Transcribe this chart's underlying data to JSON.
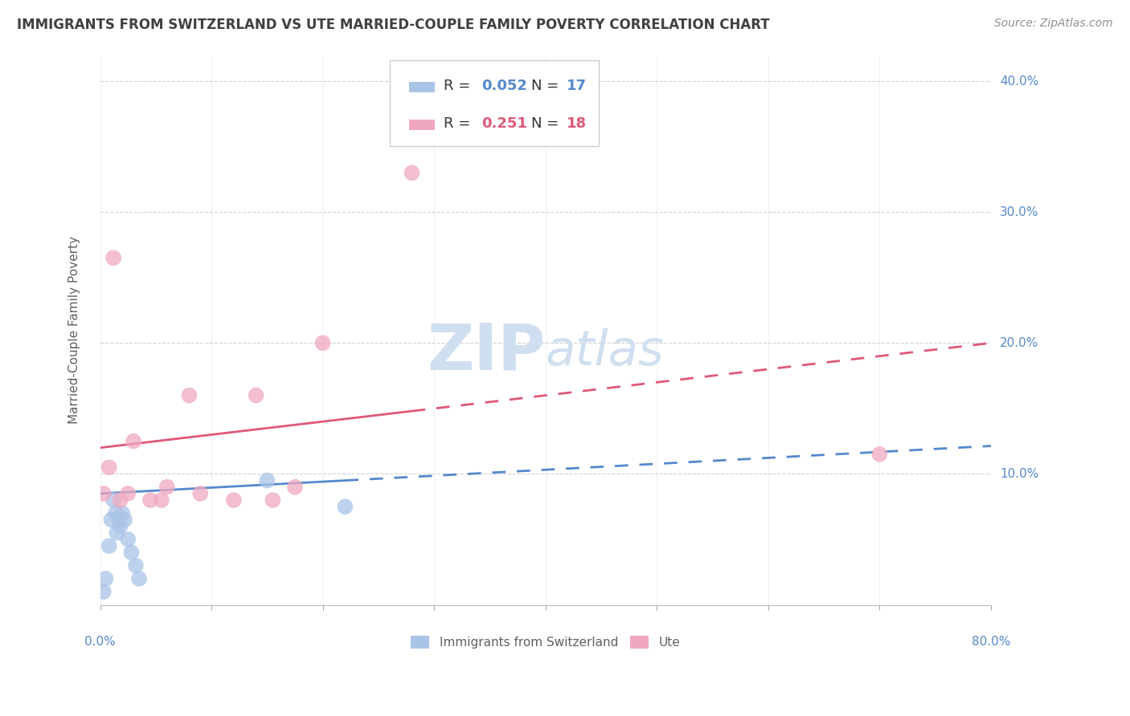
{
  "title": "IMMIGRANTS FROM SWITZERLAND VS UTE MARRIED-COUPLE FAMILY POVERTY CORRELATION CHART",
  "source": "Source: ZipAtlas.com",
  "ylabel": "Married-Couple Family Poverty",
  "legend_labels": [
    "Immigrants from Switzerland",
    "Ute"
  ],
  "blue_color": "#aac4e8",
  "pink_color": "#f0a8c0",
  "blue_line_color": "#5588cc",
  "pink_line_color": "#e05878",
  "blue_scatter_x": [
    0.3,
    0.5,
    0.8,
    1.0,
    1.2,
    1.4,
    1.5,
    1.7,
    1.8,
    2.0,
    2.2,
    2.5,
    2.8,
    3.2,
    3.5,
    15.0,
    22.0
  ],
  "blue_scatter_y": [
    1.0,
    2.0,
    4.5,
    6.5,
    8.0,
    7.0,
    5.5,
    6.5,
    6.0,
    7.0,
    6.5,
    5.0,
    4.0,
    3.0,
    2.0,
    9.5,
    7.5
  ],
  "pink_scatter_x": [
    0.3,
    0.8,
    1.2,
    1.8,
    2.5,
    3.0,
    4.5,
    5.5,
    6.0,
    8.0,
    9.0,
    12.0,
    14.0,
    15.5,
    17.5,
    20.0,
    28.0,
    70.0
  ],
  "pink_scatter_y": [
    8.5,
    10.5,
    26.5,
    8.0,
    8.5,
    12.5,
    8.0,
    8.0,
    9.0,
    16.0,
    8.5,
    8.0,
    16.0,
    8.0,
    9.0,
    20.0,
    33.0,
    11.5
  ],
  "xlim": [
    0,
    80
  ],
  "ylim": [
    0,
    42
  ],
  "ytick_positions": [
    10,
    20,
    30,
    40
  ],
  "ytick_labels": [
    "10.0%",
    "20.0%",
    "30.0%",
    "40.0%"
  ],
  "background_color": "#ffffff",
  "grid_color": "#cccccc",
  "title_color": "#404040",
  "axis_label_color": "#5588cc",
  "watermark_color": "#d0dff0",
  "blue_r": 0.052,
  "blue_n": 17,
  "pink_r": 0.251,
  "pink_n": 18,
  "blue_solid_end": 22,
  "pink_solid_end": 28
}
